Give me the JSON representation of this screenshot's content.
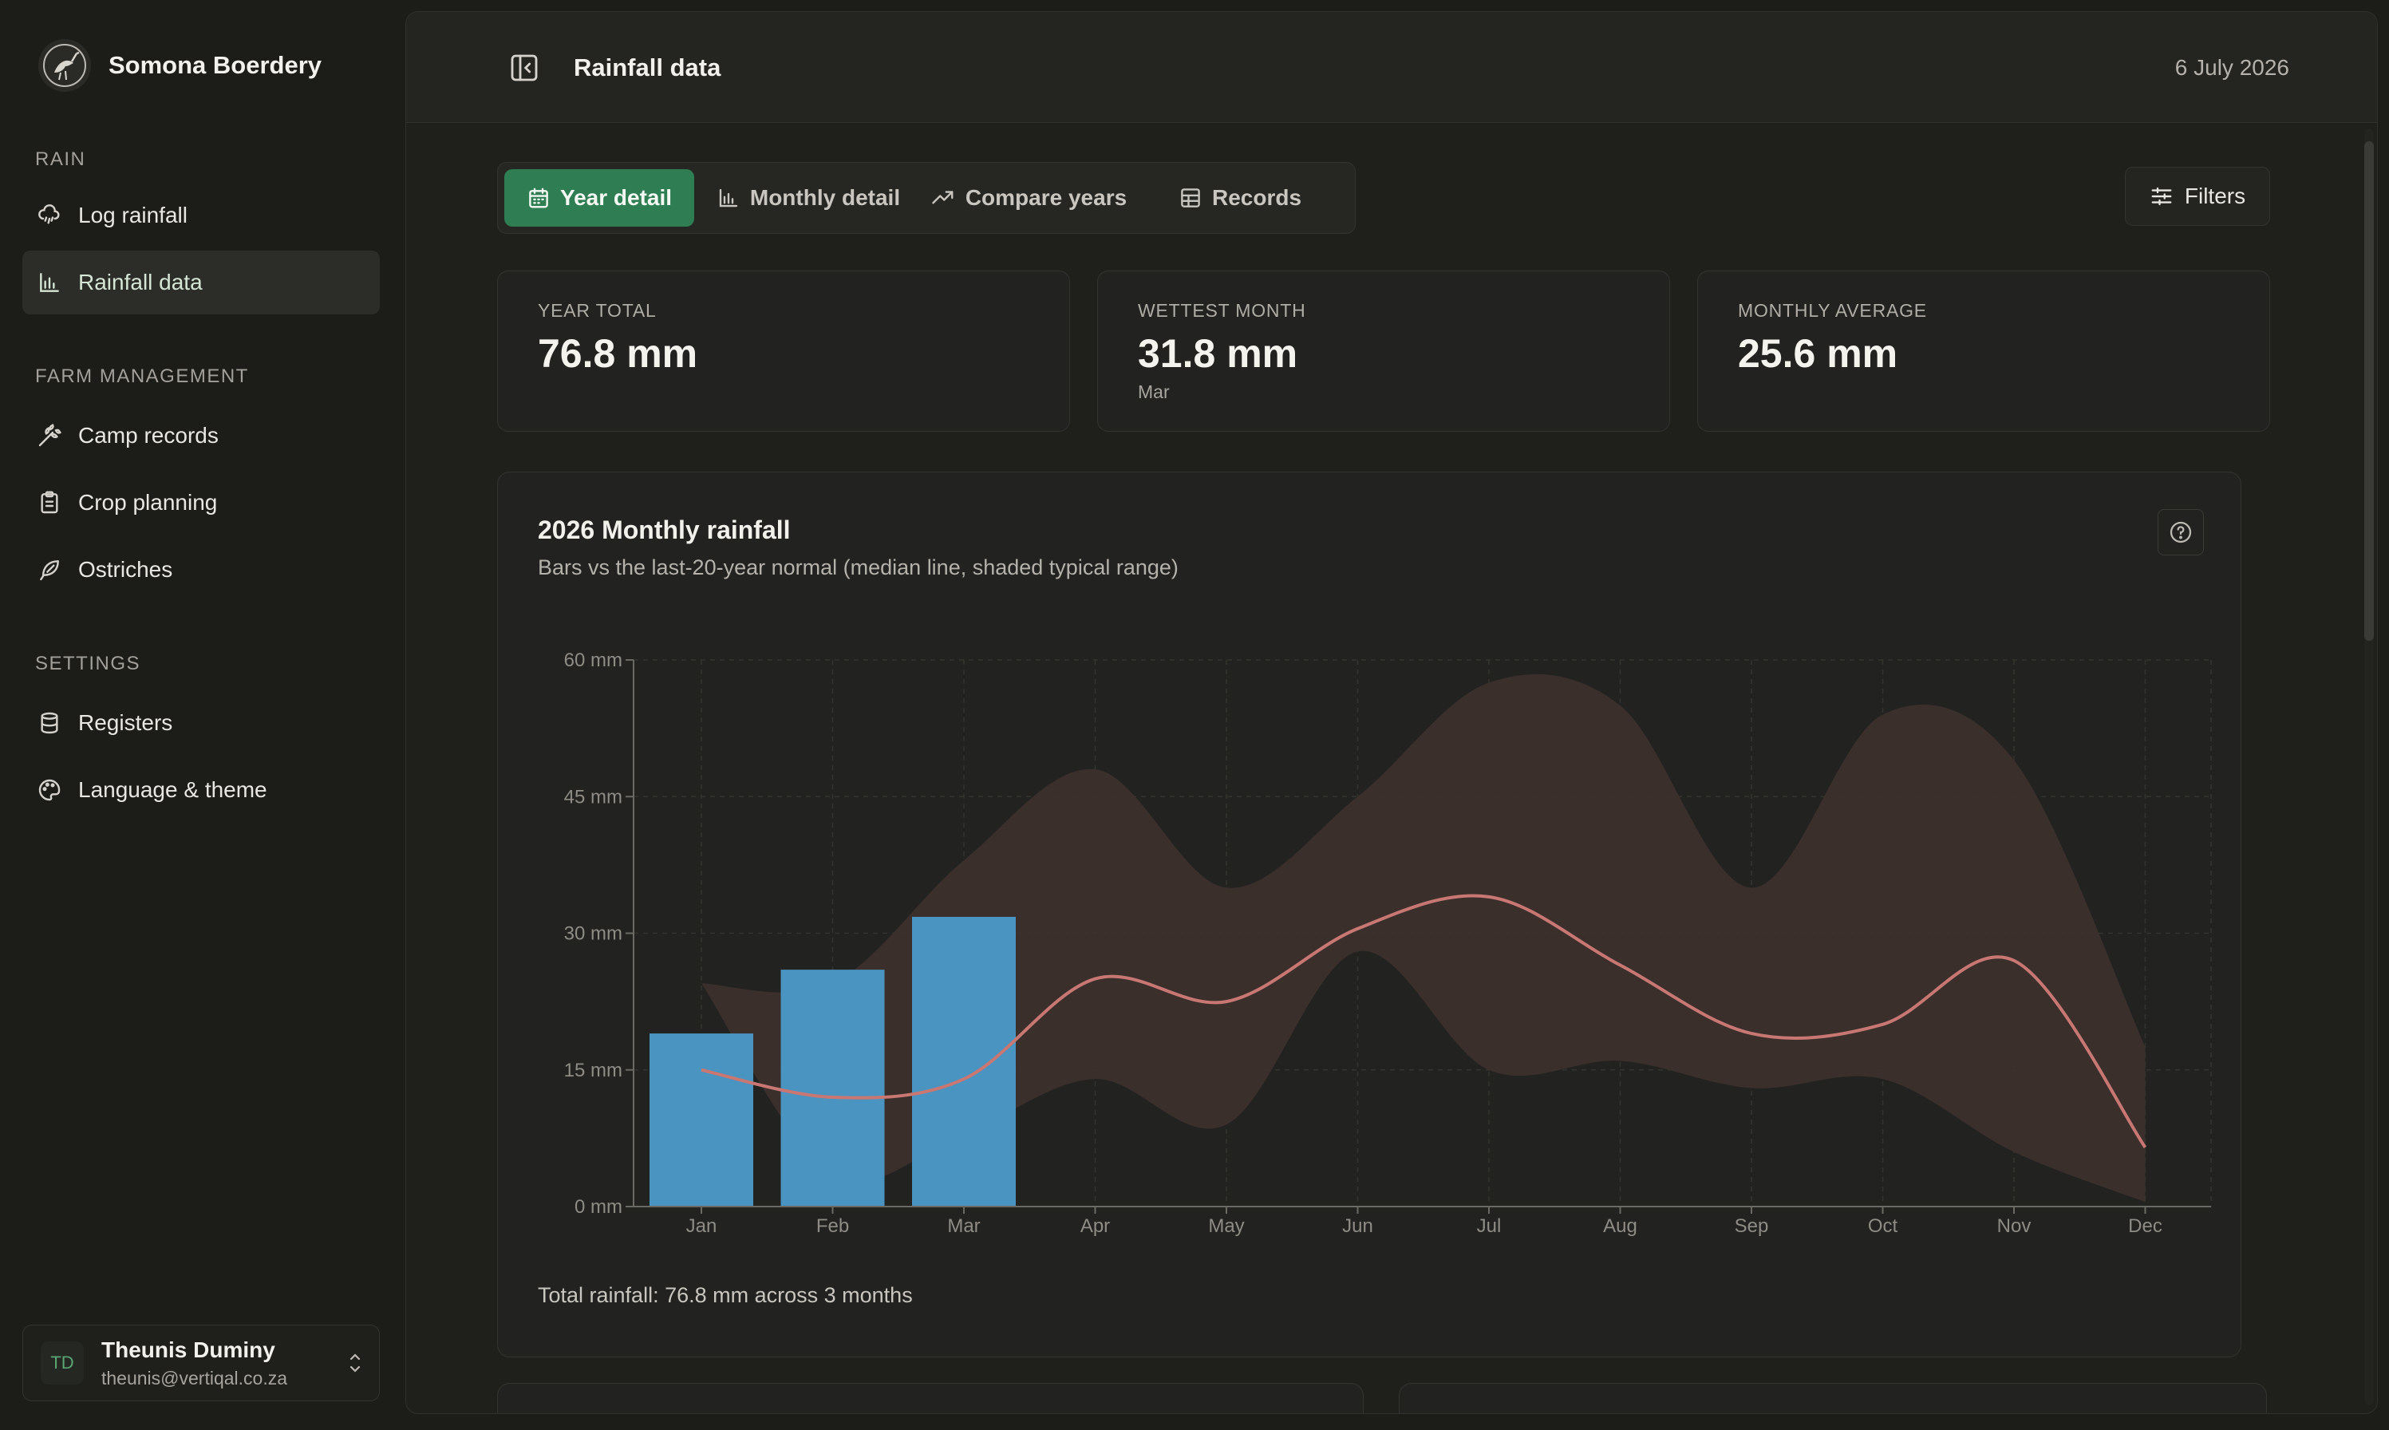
{
  "app": {
    "name": "Somona Boerdery"
  },
  "sidebar": {
    "sections": [
      {
        "label": "RAIN",
        "items": [
          {
            "label": "Log rainfall",
            "icon": "cloud-rain-icon"
          },
          {
            "label": "Rainfall data",
            "icon": "bar-chart-icon",
            "active": true
          }
        ]
      },
      {
        "label": "FARM MANAGEMENT",
        "items": [
          {
            "label": "Camp records",
            "icon": "wheat-icon"
          },
          {
            "label": "Crop planning",
            "icon": "clipboard-icon"
          },
          {
            "label": "Ostriches",
            "icon": "feather-icon"
          }
        ]
      },
      {
        "label": "SETTINGS",
        "items": [
          {
            "label": "Registers",
            "icon": "database-icon"
          },
          {
            "label": "Language & theme",
            "icon": "palette-icon"
          }
        ]
      }
    ],
    "user": {
      "initials": "TD",
      "name": "Theunis Duminy",
      "email": "theunis@vertiqal.co.za"
    }
  },
  "header": {
    "title": "Rainfall data",
    "date": "6 July 2026"
  },
  "tabs": [
    {
      "label": "Year detail",
      "icon": "calendar-icon",
      "active": true
    },
    {
      "label": "Monthly detail",
      "icon": "bar-chart-icon"
    },
    {
      "label": "Compare years",
      "icon": "trend-icon"
    },
    {
      "label": "Records",
      "icon": "table-icon"
    }
  ],
  "filters_label": "Filters",
  "stats": [
    {
      "label": "YEAR TOTAL",
      "value": "76.8 mm",
      "sub": ""
    },
    {
      "label": "WETTEST MONTH",
      "value": "31.8 mm",
      "sub": "Mar"
    },
    {
      "label": "MONTHLY AVERAGE",
      "value": "25.6 mm",
      "sub": ""
    }
  ],
  "chart": {
    "title": "2026 Monthly rainfall",
    "subtitle": "Bars vs the last-20-year normal (median line, shaded typical range)",
    "footer": "Total rainfall: 76.8 mm across 3 months"
  },
  "colors": {
    "accent": "#2f7d52",
    "bar": "#4a94c2",
    "median": "#c87773",
    "range": "#3d302d"
  },
  "chart_data": {
    "type": "bar",
    "categories": [
      "Jan",
      "Feb",
      "Mar",
      "Apr",
      "May",
      "Jun",
      "Jul",
      "Aug",
      "Sep",
      "Oct",
      "Nov",
      "Dec"
    ],
    "y_ticks": [
      "0 mm",
      "15 mm",
      "30 mm",
      "45 mm",
      "60 mm"
    ],
    "ylim": [
      0,
      60
    ],
    "grid": true,
    "series": [
      {
        "values": [
          19.0,
          26.0,
          31.8,
          null,
          null,
          null,
          null,
          null,
          null,
          null,
          null,
          null
        ]
      },
      {
        "values": [
          15.0,
          12.0,
          14.0,
          25.0,
          22.5,
          30.5,
          34.0,
          26.5,
          19.0,
          20.0,
          27.0,
          6.5
        ]
      },
      {
        "low": [
          24.5,
          3.5,
          8.0,
          14.0,
          9.0,
          28.0,
          15.0,
          16.0,
          13.0,
          14.0,
          6.0,
          0.5
        ],
        "high": [
          24.5,
          24.5,
          38.0,
          48.0,
          35.0,
          45.0,
          57.5,
          55.0,
          35.0,
          54.0,
          49.0,
          17.5
        ]
      }
    ]
  }
}
